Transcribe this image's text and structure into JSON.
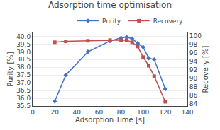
{
  "chart_data": {
    "type": "line",
    "title": "Adsorption time optimisation",
    "x_label": "Adsorption Time [s]",
    "y_label": "Purity [%]",
    "y2_label": "Recovery [%]",
    "x": [
      20,
      30,
      50,
      70,
      80,
      85,
      90,
      95,
      100,
      105,
      110,
      120
    ],
    "series": [
      {
        "name": "Purity",
        "color": "#4472C4",
        "marker": "diamond",
        "axis": "y",
        "values": [
          35.8,
          37.5,
          39.0,
          39.7,
          39.9,
          39.95,
          39.85,
          39.55,
          39.3,
          38.6,
          38.5,
          36.6
        ]
      },
      {
        "name": "Recovery",
        "color": "#C0504D",
        "marker": "square",
        "axis": "y2",
        "values": [
          98.5,
          98.7,
          98.85,
          99.0,
          99.0,
          99.0,
          98.5,
          97.5,
          95.0,
          93.0,
          90.5,
          84.5
        ]
      }
    ],
    "xlim": [
      0,
      140
    ],
    "xticks": [
      0,
      20,
      40,
      60,
      80,
      100,
      120,
      140
    ],
    "ylim": [
      35.5,
      40.25
    ],
    "yticks": [
      35.5,
      {
        "value": 36.0,
        "label": "36.0"
      },
      36.5,
      {
        "value": 37.0,
        "label": "37.0"
      },
      37.5,
      {
        "value": 38.0,
        "label": "38.0"
      },
      38.5,
      {
        "value": 39.0,
        "label": "39.0"
      },
      39.5,
      {
        "value": 40.0,
        "label": "40.0"
      }
    ],
    "y2lim": [
      83.5,
      100.8
    ],
    "y2ticks": [
      84,
      86,
      88,
      90,
      92,
      94,
      96,
      98,
      100
    ],
    "grid": "y",
    "legend": "upper right"
  }
}
